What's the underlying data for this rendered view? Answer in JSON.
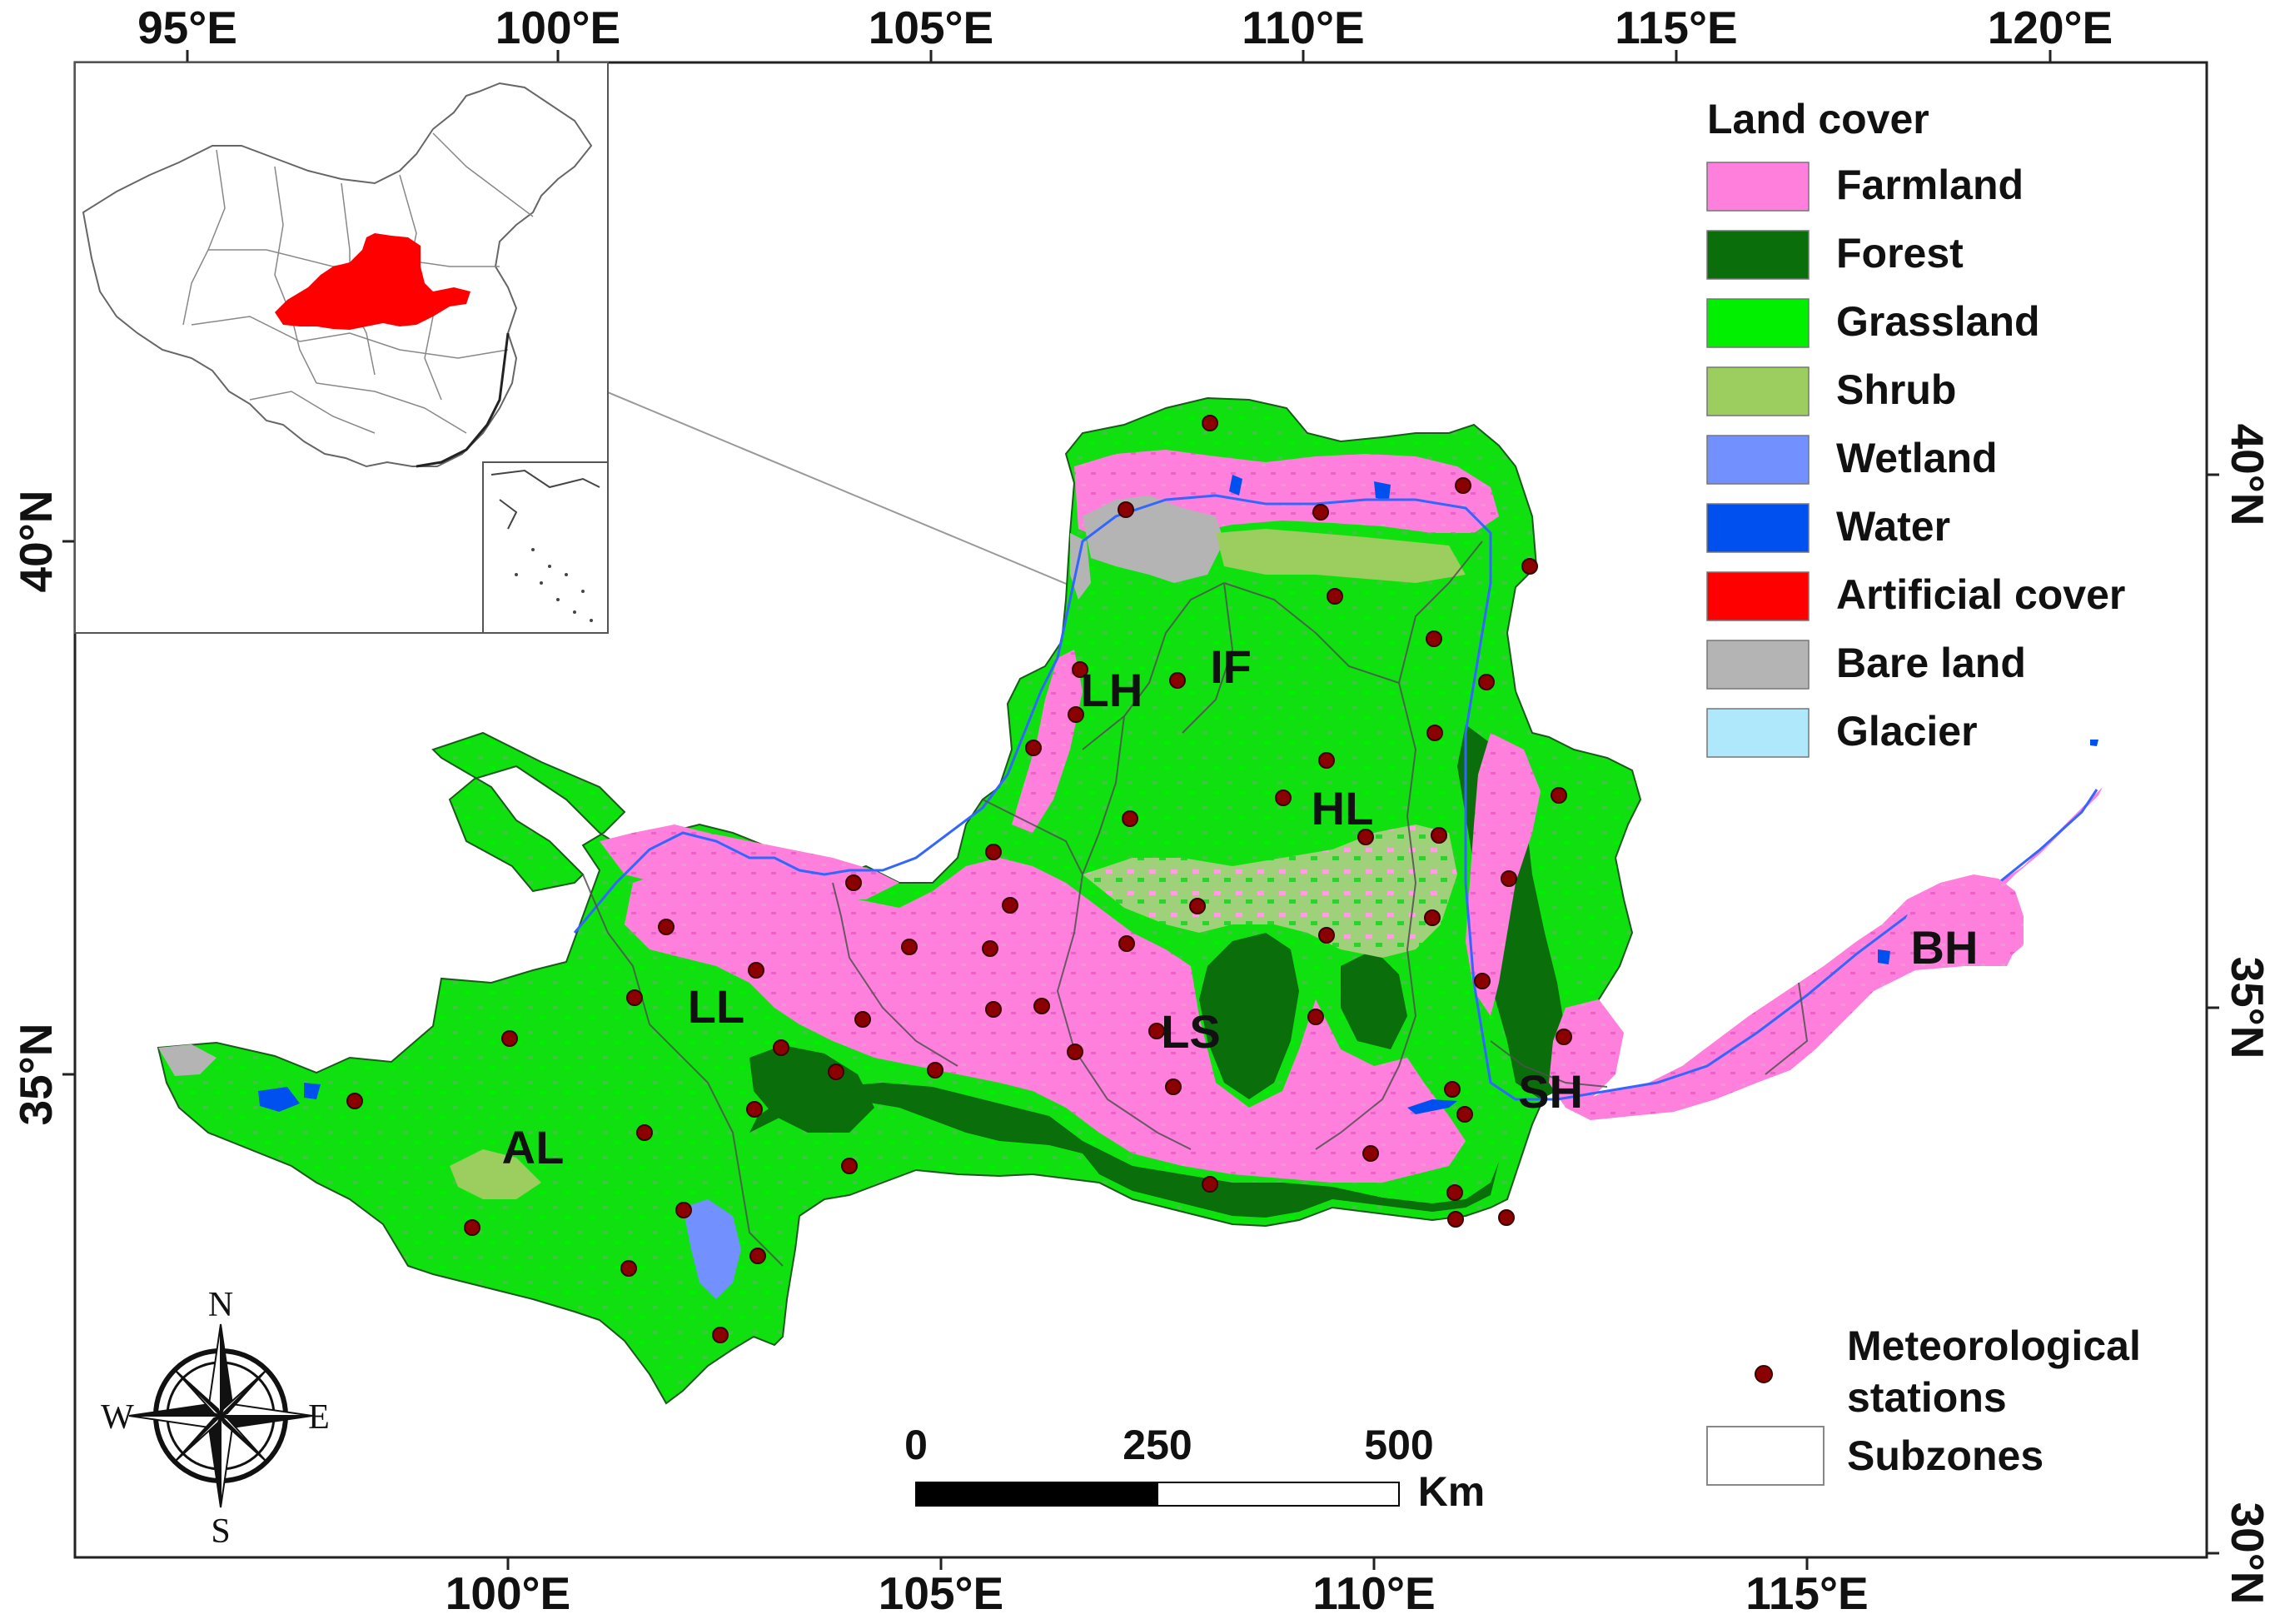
{
  "axes": {
    "lon_top": [
      "95°E",
      "100°E",
      "105°E",
      "110°E",
      "115°E",
      "120°E"
    ],
    "lon_bottom": [
      "100°E",
      "105°E",
      "110°E",
      "115°E"
    ],
    "lat_left": [
      "40°N",
      "35°N"
    ],
    "lat_right": [
      "40°N",
      "35°N",
      "30°N"
    ]
  },
  "legend": {
    "title": "Land cover",
    "items": [
      {
        "label": "Farmland",
        "color": "#ff7fdc"
      },
      {
        "label": "Forest",
        "color": "#0a6e0a"
      },
      {
        "label": "Grassland",
        "color": "#00f000"
      },
      {
        "label": "Shrub",
        "color": "#9bcd5f"
      },
      {
        "label": "Wetland",
        "color": "#7390ff"
      },
      {
        "label": "Water",
        "color": "#0050f0"
      },
      {
        "label": "Artificial cover",
        "color": "#ff0000"
      },
      {
        "label": "Bare land",
        "color": "#b4b4b4"
      },
      {
        "label": "Glacier",
        "color": "#aee8fa"
      }
    ],
    "stations_label_1": "Meteorological",
    "stations_label_2": "stations",
    "subzones_label": "Subzones",
    "station_color": "#8b0000"
  },
  "zones": [
    "AL",
    "LL",
    "LH",
    "IF",
    "HL",
    "LS",
    "SH",
    "BH"
  ],
  "scale_bar": {
    "labels": [
      "0",
      "250",
      "500"
    ],
    "unit": "Km"
  },
  "compass": {
    "n": "N",
    "s": "S",
    "e": "E",
    "w": "W"
  },
  "inset": {
    "highlight_color": "#ff0000"
  }
}
